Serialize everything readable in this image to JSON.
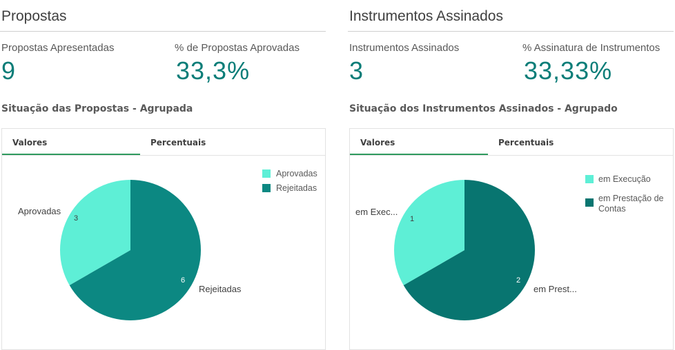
{
  "colors": {
    "light": "#5eefd6",
    "dark_left": "#0c8882",
    "dark_right": "#087570",
    "accent": "#0b7d78"
  },
  "left": {
    "title": "Propostas",
    "kpis": [
      {
        "label": "Propostas Apresentadas",
        "value": "9"
      },
      {
        "label": "% de Propostas Aprovadas",
        "value": "33,3%"
      }
    ],
    "chart_title": "Situação das Propostas - Agrupada",
    "tabs": [
      {
        "label": "Valores",
        "active": true
      },
      {
        "label": "Percentuais",
        "active": false
      }
    ],
    "legend": [
      "Aprovadas",
      "Rejeitadas"
    ],
    "slices": [
      {
        "label": "Aprovadas",
        "value": 3,
        "value_label": "3"
      },
      {
        "label": "Rejeitadas",
        "value": 6,
        "value_label": "6"
      }
    ]
  },
  "right": {
    "title": "Instrumentos Assinados",
    "kpis": [
      {
        "label": "Instrumentos Assinados",
        "value": "3"
      },
      {
        "label": "% Assinatura de Instrumentos",
        "value": "33,33%"
      }
    ],
    "chart_title": "Situação dos Instrumentos Assinados - Agrupado",
    "tabs": [
      {
        "label": "Valores",
        "active": true
      },
      {
        "label": "Percentuais",
        "active": false
      }
    ],
    "legend": [
      "em Execução",
      "em Prestação de Contas"
    ],
    "slices": [
      {
        "label": "em Exec...",
        "value": 1,
        "value_label": "1"
      },
      {
        "label": "em Prest...",
        "value": 2,
        "value_label": "2"
      }
    ]
  }
}
